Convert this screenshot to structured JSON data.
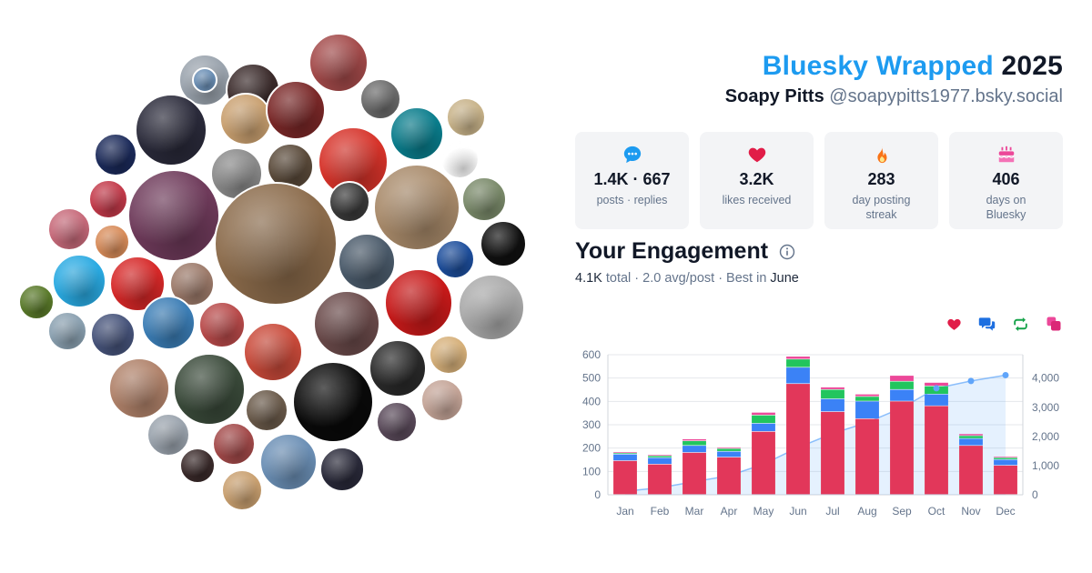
{
  "header": {
    "brand": "Bluesky Wrapped",
    "year": "2025",
    "user_name": "Soapy Pitts",
    "user_handle": "@soapypitts1977.bsky.social"
  },
  "stats": [
    {
      "icon": "speech-bubble-icon",
      "color": "#1d9bf0",
      "value": "1.4K · 667",
      "label": "posts · replies"
    },
    {
      "icon": "heart-icon",
      "color": "#e11d48",
      "value": "3.2K",
      "label": "likes received"
    },
    {
      "icon": "flame-icon",
      "color": "#f97316",
      "value": "283",
      "label": "day posting streak"
    },
    {
      "icon": "cake-icon",
      "color": "#ec4899",
      "value": "406",
      "label": "days on Bluesky"
    }
  ],
  "engagement": {
    "title": "Your Engagement",
    "total_value": "4.1K",
    "total_word": " total · ",
    "avg": "2.0 avg/post",
    "best_word": " · Best in ",
    "best_month": "June"
  },
  "legend": [
    {
      "icon": "heart-icon",
      "color": "#e11d48"
    },
    {
      "icon": "reply-icon",
      "color": "#1d6fe0"
    },
    {
      "icon": "repost-icon",
      "color": "#16a34a"
    },
    {
      "icon": "quote-icon",
      "color": "#ec4899"
    }
  ],
  "chart_data": {
    "type": "bar",
    "stacked": true,
    "categories": [
      "Jan",
      "Feb",
      "Mar",
      "Apr",
      "May",
      "Jun",
      "Jul",
      "Aug",
      "Sep",
      "Oct",
      "Nov",
      "Dec"
    ],
    "series": [
      {
        "color": "#e2375a",
        "values": [
          145,
          130,
          180,
          160,
          270,
          475,
          355,
          325,
          400,
          380,
          210,
          125
        ]
      },
      {
        "color": "#3b82f6",
        "values": [
          28,
          28,
          30,
          25,
          35,
          70,
          55,
          75,
          50,
          50,
          30,
          25
        ]
      },
      {
        "color": "#22c55e",
        "values": [
          5,
          8,
          20,
          12,
          35,
          35,
          40,
          20,
          35,
          35,
          12,
          8
        ]
      },
      {
        "color": "#ec4899",
        "values": [
          5,
          5,
          8,
          5,
          12,
          12,
          10,
          10,
          25,
          15,
          8,
          5
        ]
      }
    ],
    "cumulative": {
      "color": "#60a5fa",
      "values": [
        120,
        240,
        450,
        650,
        1050,
        1620,
        2100,
        2480,
        2980,
        3650,
        3900,
        4100
      ]
    },
    "y_left": {
      "min": 0,
      "max": 600,
      "ticks": [
        "0",
        "100",
        "200",
        "300",
        "400",
        "500",
        "600"
      ]
    },
    "y_right": {
      "min": 0,
      "max": 4800,
      "ticks": [
        "0",
        "1,000",
        "2,000",
        "3,000",
        "4,000"
      ]
    },
    "grid": true
  },
  "bubbles": [
    {
      "color": "#9aa3ad"
    },
    {
      "color": "#a34a4a"
    },
    {
      "color": "#6b8fb5"
    },
    {
      "color": "#3a2a2a"
    },
    {
      "color": "#2a2a3a"
    },
    {
      "color": "#c9a070"
    },
    {
      "color": "#7a2828"
    },
    {
      "color": "#1b2a5a"
    },
    {
      "color": "#6b6b6b"
    },
    {
      "color": "#d6332a"
    },
    {
      "color": "#0a7d8c"
    },
    {
      "color": "#c8b38a"
    },
    {
      "color": "#ffffff"
    },
    {
      "color": "#6e3a5a"
    },
    {
      "color": "#8a8a8a"
    },
    {
      "color": "#5a4a3a"
    },
    {
      "color": "#c33a4a"
    },
    {
      "color": "#8b6b4b"
    },
    {
      "color": "#3a3a3a"
    },
    {
      "color": "#a88a6a"
    },
    {
      "color": "#7a8a6a"
    },
    {
      "color": "#c76a7a"
    },
    {
      "color": "#d88c5a"
    },
    {
      "color": "#4a5a6a"
    },
    {
      "color": "#1d4e9c"
    },
    {
      "color": "#111111"
    },
    {
      "color": "#2aaae2"
    },
    {
      "color": "#d62828"
    },
    {
      "color": "#9c7a6a"
    },
    {
      "color": "#aaaaaa"
    },
    {
      "color": "#5a7a2a"
    },
    {
      "color": "#c81a1a"
    },
    {
      "color": "#6a4a4a"
    },
    {
      "color": "#8aa0b0"
    },
    {
      "color": "#46537a"
    },
    {
      "color": "#3b7db5"
    },
    {
      "color": "#b84a4a"
    },
    {
      "color": "#c94a3a"
    },
    {
      "color": "#2a2a2a"
    },
    {
      "color": "#d6b07a"
    },
    {
      "color": "#b0826a"
    },
    {
      "color": "#3a4a3a"
    },
    {
      "color": "#0a0a0a"
    },
    {
      "color": "#c5a598"
    },
    {
      "color": "#6a5a4a"
    },
    {
      "color": "#5a4a5a"
    }
  ]
}
